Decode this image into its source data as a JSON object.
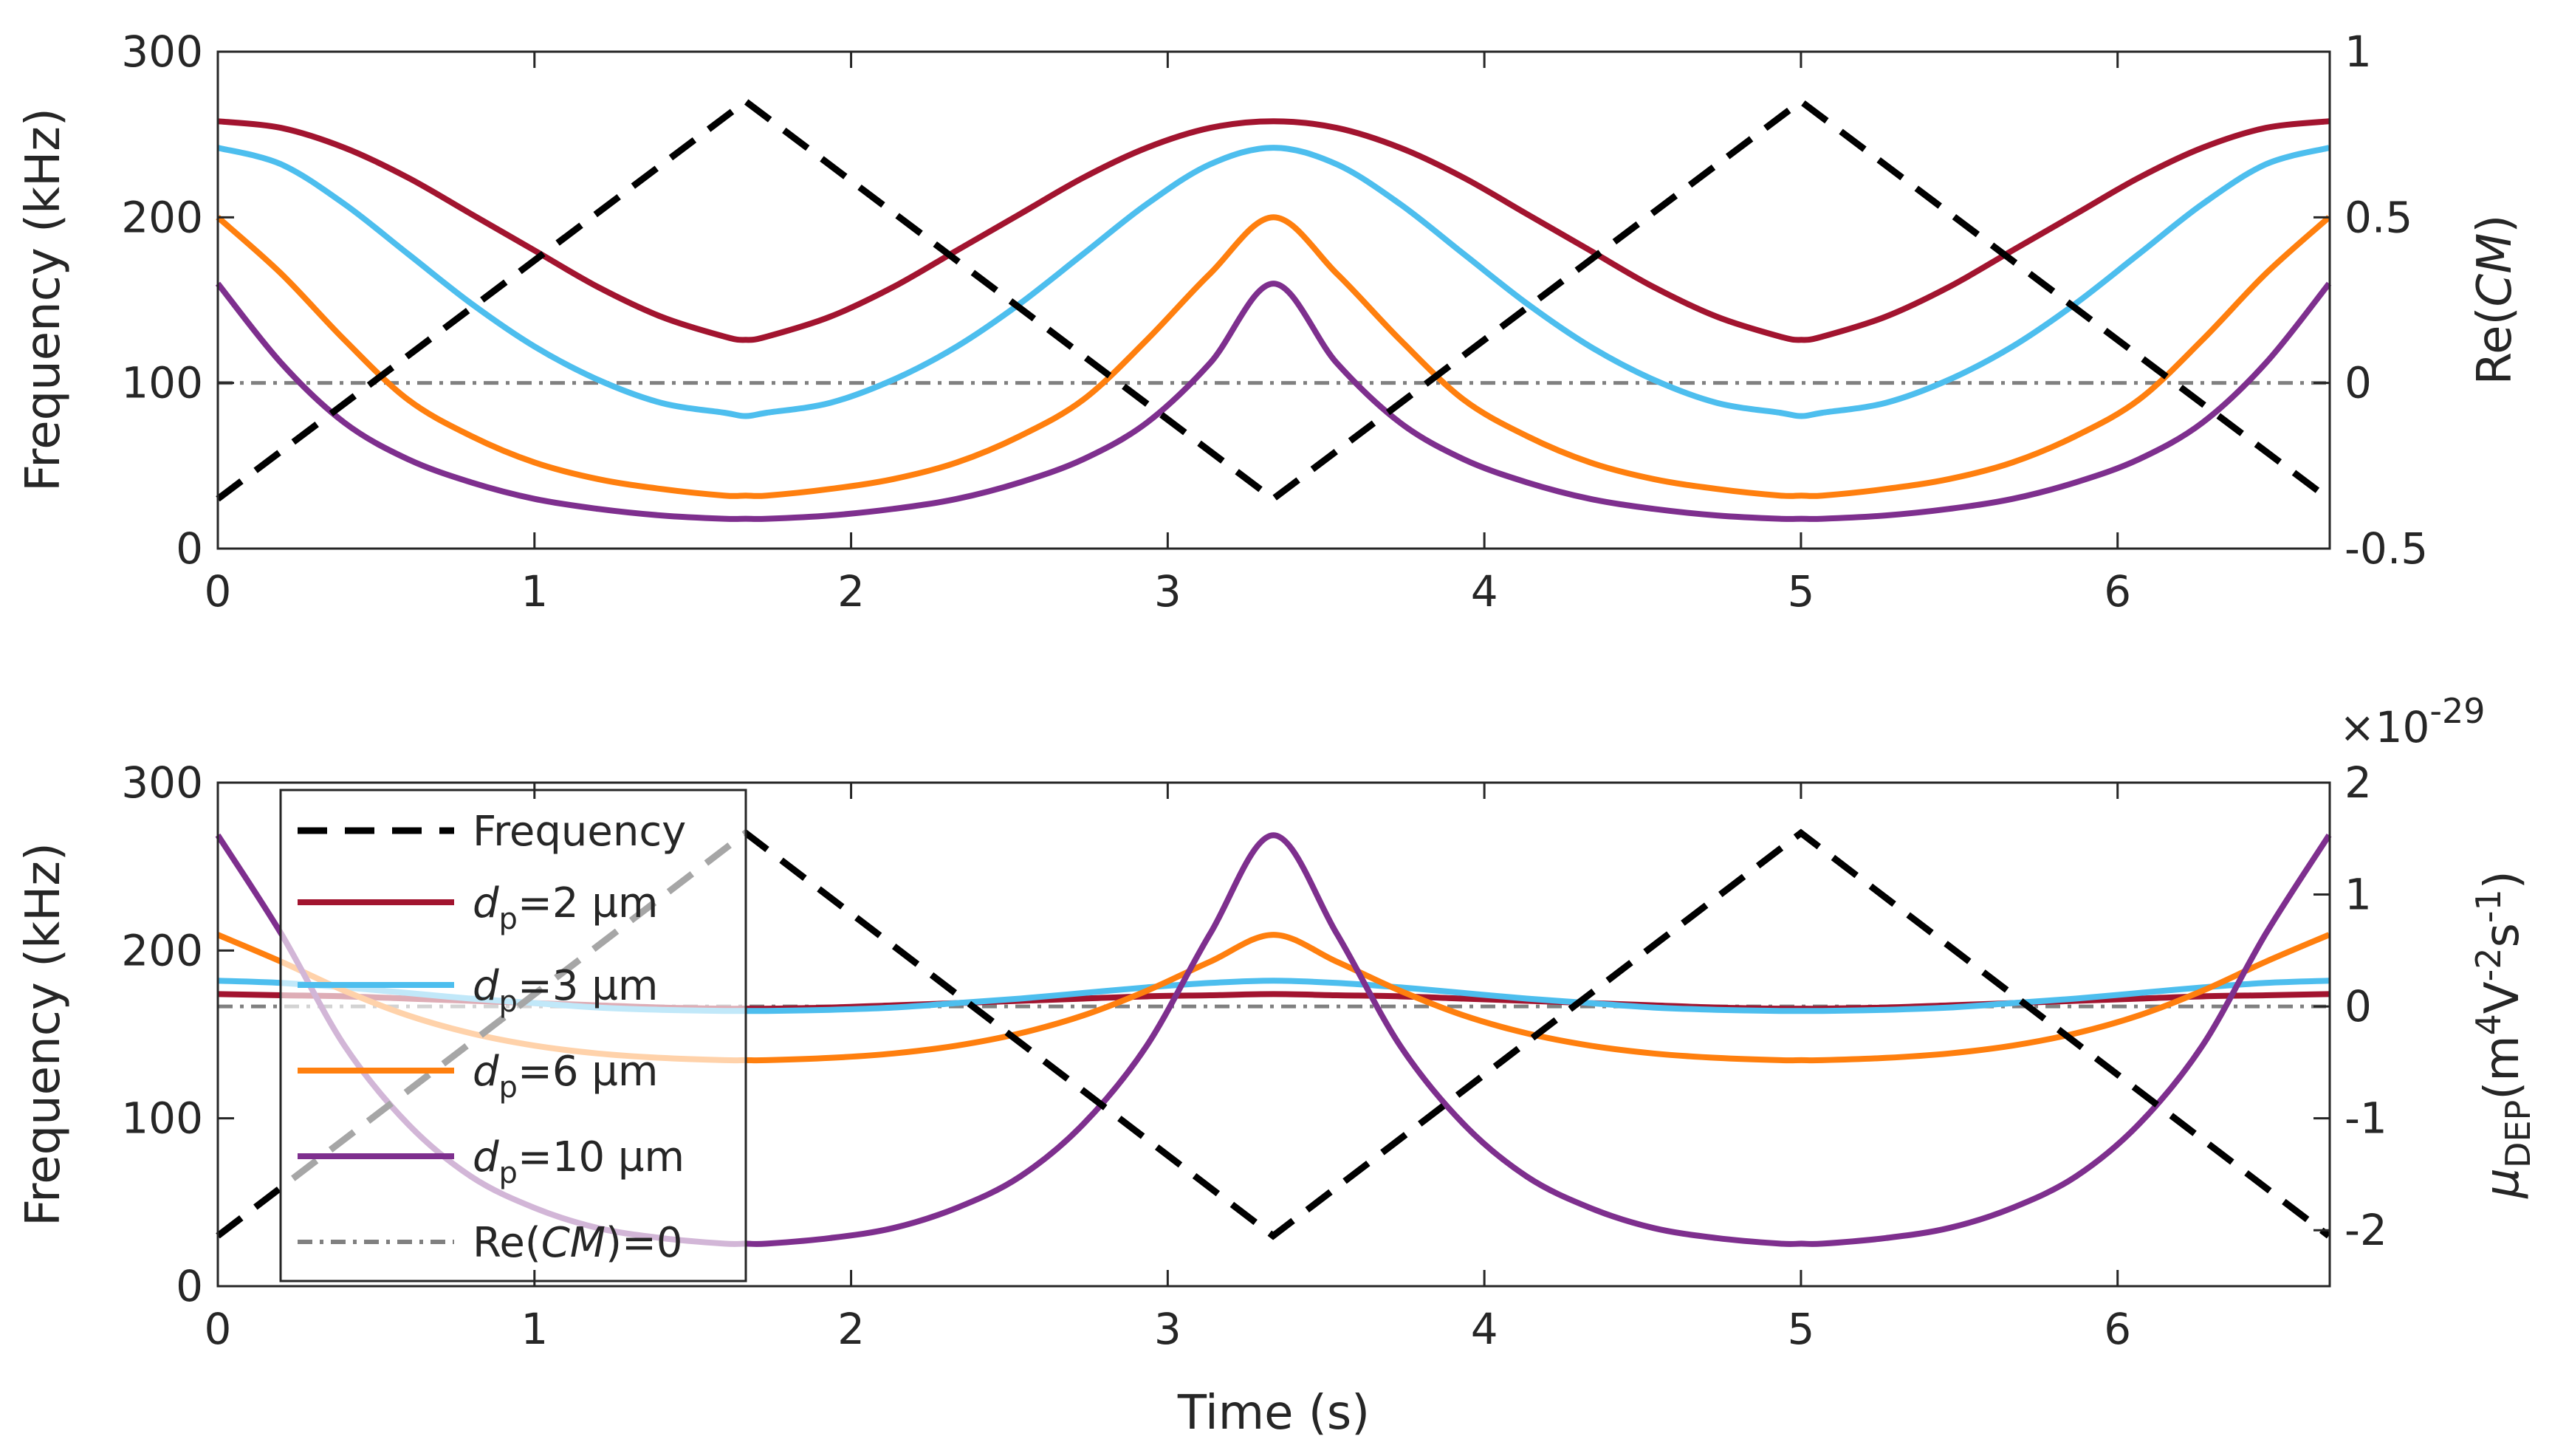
{
  "figure": {
    "x_axis_label": "Time (s)",
    "colors": {
      "frequency": "#000000",
      "d2": "#A2142F",
      "d3": "#4DBEEE",
      "d6": "#FF7F0E",
      "d10": "#7E2F8E",
      "zero": "#808080",
      "axis": "#262626"
    }
  },
  "chart_data": [
    {
      "type": "line",
      "panel": "top",
      "xlabel": "Time (s)",
      "ylabel_left": "Frequency (kHz)",
      "ylabel_right_prefix": "Re(",
      "ylabel_right_italic": "CM",
      "ylabel_right_suffix": ")",
      "xlim": [
        0,
        6.67
      ],
      "ylim_left": [
        0,
        300
      ],
      "ylim_right": [
        -0.5,
        1
      ],
      "x_ticks": [
        0,
        1,
        2,
        3,
        4,
        5,
        6
      ],
      "x_tick_labels": [
        "0",
        "1",
        "2",
        "3",
        "4",
        "5",
        "6"
      ],
      "y_left_ticks": [
        0,
        100,
        200,
        300
      ],
      "y_left_tick_labels": [
        "0",
        "100",
        "200",
        "300"
      ],
      "y_right_ticks": [
        -0.5,
        0,
        0.5,
        1
      ],
      "y_right_tick_labels": [
        "-0.5",
        "0",
        "0.5",
        "1"
      ],
      "frequency": {
        "name": "Frequency",
        "axis": "left",
        "style": "dashed",
        "x": [
          0,
          1.667,
          3.333,
          5,
          6.667
        ],
        "y": [
          30,
          270,
          30,
          270,
          30
        ]
      },
      "series": [
        {
          "name": "dp=2 µm",
          "key": "d2",
          "axis": "right",
          "t": [
            0,
            0.2,
            0.4,
            0.6,
            0.8,
            1.0,
            1.2,
            1.4,
            1.6,
            1.667
          ],
          "values": [
            0.79,
            0.77,
            0.71,
            0.62,
            0.51,
            0.4,
            0.29,
            0.2,
            0.14,
            0.13
          ]
        },
        {
          "name": "dp=3 µm",
          "key": "d3",
          "axis": "right",
          "t": [
            0,
            0.2,
            0.4,
            0.6,
            0.8,
            1.0,
            1.2,
            1.4,
            1.6,
            1.667
          ],
          "values": [
            0.71,
            0.66,
            0.54,
            0.39,
            0.24,
            0.11,
            0.01,
            -0.06,
            -0.09,
            -0.1
          ]
        },
        {
          "name": "dp=6 µm",
          "key": "d6",
          "axis": "right",
          "t": [
            0,
            0.2,
            0.4,
            0.6,
            0.8,
            1.0,
            1.2,
            1.4,
            1.6,
            1.667
          ],
          "values": [
            0.5,
            0.33,
            0.13,
            -0.05,
            -0.16,
            -0.24,
            -0.29,
            -0.32,
            -0.34,
            -0.34
          ]
        },
        {
          "name": "dp=10 µm",
          "key": "d10",
          "axis": "right",
          "t": [
            0,
            0.2,
            0.4,
            0.6,
            0.8,
            1.0,
            1.2,
            1.4,
            1.6,
            1.667
          ],
          "values": [
            0.3,
            0.06,
            -0.12,
            -0.23,
            -0.3,
            -0.35,
            -0.38,
            -0.4,
            -0.41,
            -0.41
          ]
        }
      ],
      "reference_line": {
        "name": "Re(CM)=0",
        "axis": "right",
        "value": 0,
        "style": "dash-dot"
      }
    },
    {
      "type": "line",
      "panel": "bottom",
      "xlabel": "Time (s)",
      "ylabel_left": "Frequency (kHz)",
      "ylabel_right_mu": "μ",
      "ylabel_right_sub": "DEP",
      "ylabel_right_units": [
        "(m",
        "4",
        "V",
        "-2",
        "s",
        "-1",
        ")"
      ],
      "exponent_label_base": "×10",
      "exponent_label_power": "-29",
      "xlim": [
        0,
        6.67
      ],
      "ylim_left": [
        0,
        300
      ],
      "ylim_right": [
        -2.5,
        2
      ],
      "x_ticks": [
        0,
        1,
        2,
        3,
        4,
        5,
        6
      ],
      "x_tick_labels": [
        "0",
        "1",
        "2",
        "3",
        "4",
        "5",
        "6"
      ],
      "y_left_ticks": [
        0,
        100,
        200,
        300
      ],
      "y_left_tick_labels": [
        "0",
        "100",
        "200",
        "300"
      ],
      "y_right_ticks": [
        -2,
        -1,
        0,
        1,
        2
      ],
      "y_right_tick_labels": [
        "-2",
        "-1",
        "0",
        "1",
        "2"
      ],
      "frequency": {
        "name": "Frequency",
        "axis": "left",
        "style": "dashed",
        "x": [
          0,
          1.667,
          3.333,
          5,
          6.667
        ],
        "y": [
          30,
          270,
          30,
          270,
          30
        ]
      },
      "series": [
        {
          "name": "dp=2 µm",
          "key": "d2",
          "axis": "right",
          "t": [
            0,
            0.2,
            0.4,
            0.6,
            0.8,
            1.0,
            1.2,
            1.4,
            1.6,
            1.667
          ],
          "values": [
            0.11,
            0.1,
            0.09,
            0.07,
            0.05,
            0.03,
            0.01,
            -0.01,
            -0.02,
            -0.02
          ]
        },
        {
          "name": "dp=3 µm",
          "key": "d3",
          "axis": "right",
          "t": [
            0,
            0.2,
            0.4,
            0.6,
            0.8,
            1.0,
            1.2,
            1.4,
            1.6,
            1.667
          ],
          "values": [
            0.23,
            0.21,
            0.17,
            0.12,
            0.07,
            0.03,
            -0.01,
            -0.03,
            -0.04,
            -0.04
          ]
        },
        {
          "name": "dp=6 µm",
          "key": "d6",
          "axis": "right",
          "t": [
            0,
            0.2,
            0.4,
            0.6,
            0.8,
            1.0,
            1.2,
            1.4,
            1.6,
            1.667
          ],
          "values": [
            0.64,
            0.4,
            0.14,
            -0.08,
            -0.24,
            -0.35,
            -0.42,
            -0.46,
            -0.48,
            -0.48
          ]
        },
        {
          "name": "dp=10 µm",
          "key": "d10",
          "axis": "right",
          "t": [
            0,
            0.2,
            0.4,
            0.6,
            0.8,
            1.0,
            1.2,
            1.4,
            1.6,
            1.667
          ],
          "values": [
            1.53,
            0.65,
            -0.35,
            -1.05,
            -1.52,
            -1.8,
            -1.98,
            -2.07,
            -2.12,
            -2.12
          ]
        }
      ],
      "reference_line": {
        "name": "Re(CM)=0",
        "axis": "right",
        "value": 0,
        "style": "dash-dot"
      }
    }
  ],
  "legend": {
    "placement": "top-left of bottom panel",
    "entries": [
      {
        "key": "frequency",
        "text": "Frequency"
      },
      {
        "key": "d2",
        "italic": "d",
        "sub": "p",
        "text": "=2 µm"
      },
      {
        "key": "d3",
        "italic": "d",
        "sub": "p",
        "text": "=3 µm"
      },
      {
        "key": "d6",
        "italic": "d",
        "sub": "p",
        "text": "=6 µm"
      },
      {
        "key": "d10",
        "italic": "d",
        "sub": "p",
        "text": "=10 µm"
      },
      {
        "key": "zero",
        "prefix": "Re(",
        "italic": "CM",
        "text": ")=0"
      }
    ]
  }
}
